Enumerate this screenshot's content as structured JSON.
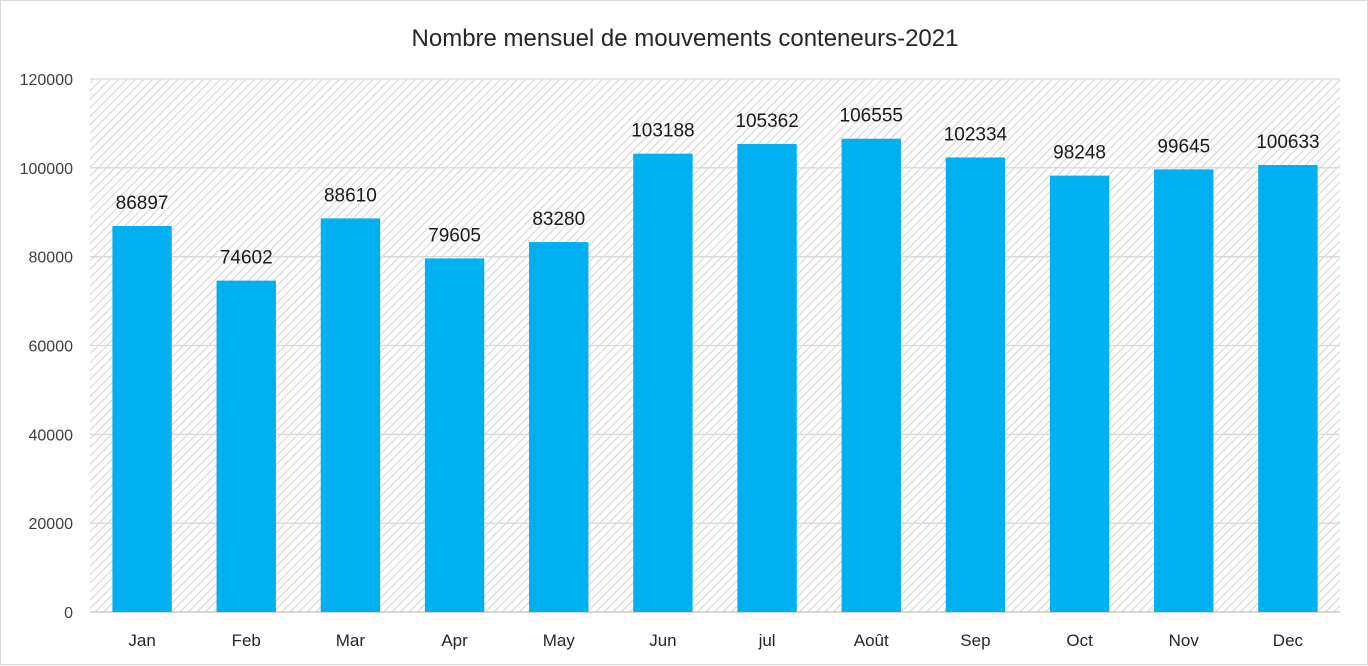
{
  "chart_data": {
    "type": "bar",
    "title": "Nombre mensuel de mouvements conteneurs-2021",
    "xlabel": "",
    "ylabel": "",
    "categories": [
      "Jan",
      "Feb",
      "Mar",
      "Apr",
      "May",
      "Jun",
      "jul",
      "Août",
      "Sep",
      "Oct",
      "Nov",
      "Dec"
    ],
    "values": [
      86897,
      74602,
      88610,
      79605,
      83280,
      103188,
      105362,
      106555,
      102334,
      98248,
      99645,
      100633
    ],
    "ylim": [
      0,
      120000
    ],
    "yticks": [
      0,
      20000,
      40000,
      60000,
      80000,
      100000,
      120000
    ],
    "grid": true,
    "legend": "none",
    "bar_color": "#00B0F0",
    "plot_background": "hatched light gray"
  }
}
